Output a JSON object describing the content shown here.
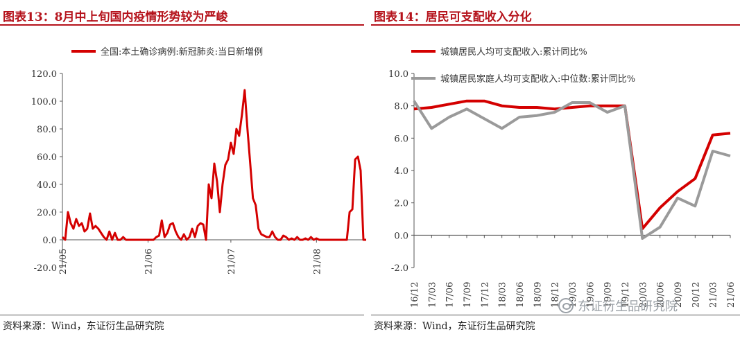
{
  "panels": {
    "left": {
      "title": "图表13：8月中上旬国内疫情形势较为严峻",
      "source": "资料来源：Wind，东证衍生品研究院"
    },
    "right": {
      "title": "图表14：居民可支配收入分化",
      "source": "资料来源：Wind，东证衍生品研究院"
    }
  },
  "watermark": "东证衍生品研究院",
  "colors": {
    "accent": "#b5121b",
    "series_red": "#d40000",
    "series_gray": "#9a9a9a"
  },
  "chart_data": [
    {
      "type": "line",
      "ylim": [
        -20,
        120
      ],
      "yticks": [
        "-20.0",
        "0.0",
        "20.0",
        "40.0",
        "60.0",
        "80.0",
        "100.0",
        "120.0"
      ],
      "ytick_values": [
        -20,
        0,
        20,
        40,
        60,
        80,
        100,
        120
      ],
      "xticks": [
        {
          "label": "21/05",
          "x": 0
        },
        {
          "label": "21/06",
          "x": 31
        },
        {
          "label": "21/07",
          "x": 61
        },
        {
          "label": "21/08",
          "x": 92
        }
      ],
      "xlim": [
        0,
        110
      ],
      "legend_position": "top",
      "series": [
        {
          "name": "全国:本土确诊病例:新冠肺炎:当日新增例",
          "color": "#d40000",
          "x": [
            0,
            1,
            2,
            3,
            4,
            5,
            6,
            7,
            8,
            9,
            10,
            11,
            12,
            13,
            14,
            15,
            16,
            17,
            18,
            19,
            20,
            21,
            22,
            23,
            24,
            25,
            26,
            27,
            28,
            29,
            30,
            31,
            32,
            33,
            34,
            35,
            36,
            37,
            38,
            39,
            40,
            41,
            42,
            43,
            44,
            45,
            46,
            47,
            48,
            49,
            50,
            51,
            52,
            53,
            54,
            55,
            56,
            57,
            58,
            59,
            60,
            61,
            62,
            63,
            64,
            65,
            66,
            67,
            68,
            69,
            70,
            71,
            72,
            73,
            74,
            75,
            76,
            77,
            78,
            79,
            80,
            81,
            82,
            83,
            84,
            85,
            86,
            87,
            88,
            89,
            90,
            91,
            92,
            93,
            94,
            95,
            96,
            97,
            98,
            99,
            100,
            101,
            102,
            103,
            104,
            105,
            106,
            107,
            108,
            109,
            110
          ],
          "y": [
            2,
            0,
            20,
            12,
            8,
            15,
            10,
            12,
            6,
            8,
            19,
            8,
            10,
            8,
            5,
            2,
            0,
            6,
            0,
            5,
            0,
            0,
            2,
            0,
            0,
            0,
            0,
            0,
            0,
            0,
            0,
            0,
            0,
            0,
            2,
            3,
            14,
            2,
            5,
            11,
            12,
            6,
            2,
            0,
            4,
            0,
            2,
            8,
            2,
            10,
            12,
            11,
            0,
            40,
            30,
            55,
            42,
            20,
            40,
            54,
            58,
            70,
            62,
            80,
            75,
            90,
            108,
            80,
            55,
            30,
            25,
            8,
            4,
            3,
            2,
            2,
            6,
            2,
            0,
            0,
            3,
            2,
            0,
            1,
            0,
            2,
            0,
            0,
            1,
            0,
            2,
            0,
            1,
            0,
            0,
            0,
            0,
            0,
            0,
            0,
            0,
            0,
            0,
            0,
            20,
            22,
            58,
            60,
            50,
            0,
            0
          ]
        }
      ]
    },
    {
      "type": "line",
      "ylim": [
        -2,
        10
      ],
      "yticks": [
        "-2.0",
        "0.0",
        "2.0",
        "4.0",
        "6.0",
        "8.0",
        "10.0"
      ],
      "ytick_values": [
        -2,
        0,
        2,
        4,
        6,
        8,
        10
      ],
      "categories": [
        "16/12",
        "17/03",
        "17/06",
        "17/09",
        "17/12",
        "18/03",
        "18/06",
        "18/09",
        "18/12",
        "19/03",
        "19/06",
        "19/09",
        "19/12",
        "20/03",
        "20/06",
        "20/09",
        "20/12",
        "21/03",
        "21/06"
      ],
      "legend_position": "top",
      "series": [
        {
          "name": "城镇居民人均可支配收入:累计同比%",
          "color": "#d40000",
          "values": [
            7.8,
            7.9,
            8.1,
            8.3,
            8.3,
            8.0,
            7.9,
            7.9,
            7.8,
            7.9,
            8.0,
            8.0,
            8.0,
            0.4,
            1.7,
            2.7,
            3.5,
            6.2,
            6.3
          ]
        },
        {
          "name": "城镇居民家庭人均可支配收入:中位数:累计同比%",
          "color": "#9a9a9a",
          "values": [
            8.3,
            6.6,
            7.3,
            7.8,
            7.2,
            6.6,
            7.3,
            7.4,
            7.6,
            8.2,
            8.2,
            7.6,
            8.0,
            -0.2,
            0.5,
            2.3,
            1.8,
            5.2,
            4.9
          ]
        }
      ]
    }
  ]
}
